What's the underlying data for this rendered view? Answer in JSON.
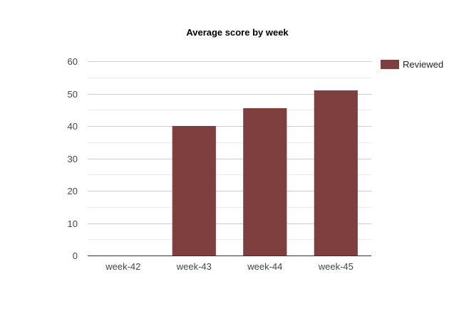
{
  "chart_data": {
    "type": "bar",
    "title": "Average score by week",
    "xlabel": "",
    "ylabel": "",
    "categories": [
      "week-42",
      "week-43",
      "week-44",
      "week-45"
    ],
    "series": [
      {
        "name": "Reviewed",
        "values": [
          0,
          40,
          45.5,
          51
        ],
        "color": "#7f3f3f"
      }
    ],
    "ylim": [
      0,
      60
    ],
    "yticks": [
      0,
      10,
      20,
      30,
      40,
      50,
      60
    ],
    "yticks_labels": [
      "0",
      "10",
      "20",
      "30",
      "40",
      "50",
      "60"
    ],
    "grid": true,
    "minor_grid": true,
    "legend_position": "right",
    "colors": {
      "grid_major": "#cccccc",
      "grid_minor": "#ebebeb",
      "axis": "#333333"
    }
  }
}
